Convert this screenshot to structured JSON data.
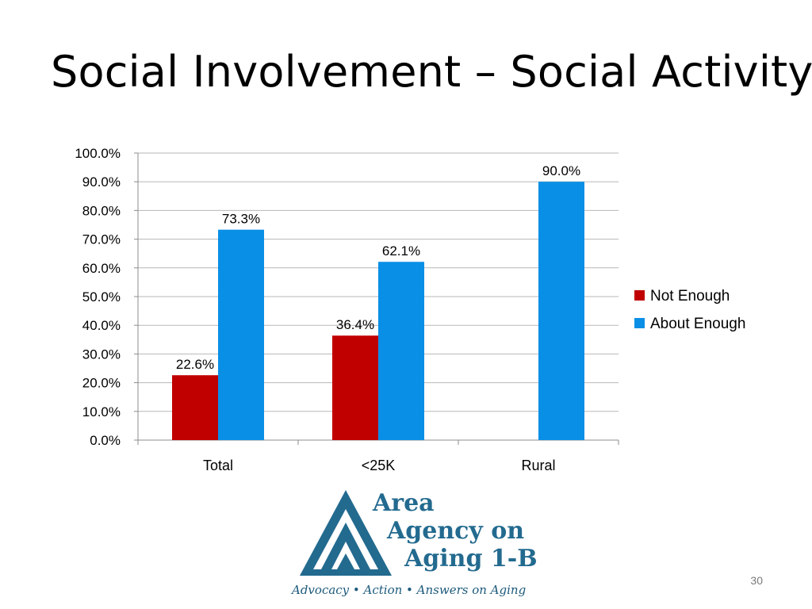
{
  "slide": {
    "title": "Social Involvement – Social Activity",
    "page_number": "30"
  },
  "logo": {
    "line1": "Area",
    "line2": "Agency on",
    "line3": "Aging 1-B",
    "tagline": "Advocacy • Action • Answers on Aging",
    "primary_color": "#236A8F",
    "tagline_color": "#1C5A7C"
  },
  "chart_data": {
    "type": "bar",
    "title": "",
    "xlabel": "",
    "ylabel": "",
    "categories": [
      "Total",
      "<25K",
      "Rural"
    ],
    "series": [
      {
        "name": "Not Enough",
        "color": "#C00000",
        "values": [
          22.6,
          36.4,
          null
        ],
        "labels": [
          "22.6%",
          "36.4%",
          null
        ]
      },
      {
        "name": "About Enough",
        "color": "#0A8FE6",
        "values": [
          73.3,
          62.1,
          90.0
        ],
        "labels": [
          "73.3%",
          "62.1%",
          "90.0%"
        ]
      }
    ],
    "ylim": [
      0,
      100
    ],
    "yticks": [
      0,
      10,
      20,
      30,
      40,
      50,
      60,
      70,
      80,
      90,
      100
    ],
    "ytick_labels": [
      "0.0%",
      "10.0%",
      "20.0%",
      "30.0%",
      "40.0%",
      "50.0%",
      "60.0%",
      "70.0%",
      "80.0%",
      "90.0%",
      "100.0%"
    ],
    "grid": true,
    "legend_position": "right"
  }
}
